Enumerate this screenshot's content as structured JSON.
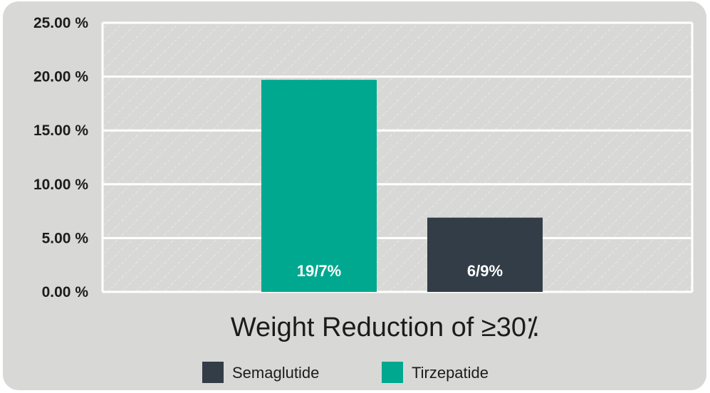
{
  "chart_data": {
    "type": "bar",
    "xlabel": "Weight Reduction of ≥30⁒",
    "ylim": [
      0,
      25
    ],
    "ytick_labels": [
      "0.00 %",
      "5.00 %",
      "10.00 %",
      "15.00 %",
      "20.00 %",
      "25.00 %"
    ],
    "yticks": [
      0,
      5,
      10,
      15,
      20,
      25
    ],
    "grid": true,
    "legend_position": "bottom",
    "series": [
      {
        "name": "Tirzepatide",
        "value": 19.7,
        "data_label": "19/7%",
        "color": "#00a88f"
      },
      {
        "name": "Semaglutide",
        "value": 6.9,
        "data_label": "6/9%",
        "color": "#323d47"
      }
    ],
    "legend": [
      {
        "name": "Semaglutide",
        "color": "#323d47"
      },
      {
        "name": "Tirzepatide",
        "color": "#00a88f"
      }
    ]
  }
}
